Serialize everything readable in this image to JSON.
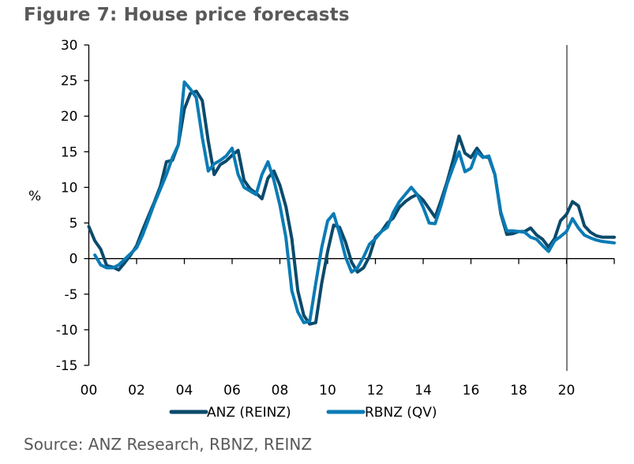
{
  "title": "Figure 7: House price forecasts",
  "source": "Source: ANZ Research, RBNZ, REINZ",
  "chart_data": {
    "type": "line",
    "title": "Figure 7: House price forecasts",
    "xlabel": "",
    "ylabel": "%",
    "xlim": [
      2000,
      2022
    ],
    "ylim": [
      -15,
      30
    ],
    "y_ticks": [
      30,
      25,
      20,
      15,
      10,
      5,
      0,
      -5,
      -10,
      -15
    ],
    "x_ticks": [
      {
        "value": 2000,
        "label": "00"
      },
      {
        "value": 2002,
        "label": "02"
      },
      {
        "value": 2004,
        "label": "04"
      },
      {
        "value": 2006,
        "label": "06"
      },
      {
        "value": 2008,
        "label": "08"
      },
      {
        "value": 2010,
        "label": "10"
      },
      {
        "value": 2012,
        "label": "12"
      },
      {
        "value": 2014,
        "label": "14"
      },
      {
        "value": 2016,
        "label": "16"
      },
      {
        "value": 2018,
        "label": "18"
      },
      {
        "value": 2020,
        "label": "20"
      },
      {
        "value": 2022,
        "label": ""
      }
    ],
    "grid": false,
    "legend": "bottom-center",
    "forecast_marker_x": 2020.0,
    "series": [
      {
        "name": "ANZ (REINZ)",
        "color": "#0b4a6b",
        "points": [
          [
            2000.0,
            4.5
          ],
          [
            2000.25,
            2.5
          ],
          [
            2000.5,
            1.3
          ],
          [
            2000.75,
            -1.0
          ],
          [
            2001.0,
            -1.2
          ],
          [
            2001.25,
            -1.6
          ],
          [
            2001.5,
            -0.6
          ],
          [
            2001.75,
            0.5
          ],
          [
            2002.0,
            1.8
          ],
          [
            2002.25,
            4.0
          ],
          [
            2002.5,
            6.0
          ],
          [
            2002.75,
            8.0
          ],
          [
            2003.0,
            10.2
          ],
          [
            2003.25,
            13.6
          ],
          [
            2003.5,
            13.8
          ],
          [
            2003.75,
            16.0
          ],
          [
            2004.0,
            21.0
          ],
          [
            2004.25,
            23.2
          ],
          [
            2004.5,
            23.5
          ],
          [
            2004.75,
            22.2
          ],
          [
            2005.0,
            16.5
          ],
          [
            2005.25,
            11.8
          ],
          [
            2005.5,
            13.2
          ],
          [
            2005.75,
            13.7
          ],
          [
            2006.0,
            14.5
          ],
          [
            2006.25,
            15.2
          ],
          [
            2006.5,
            11.0
          ],
          [
            2006.75,
            9.8
          ],
          [
            2007.0,
            9.2
          ],
          [
            2007.25,
            8.4
          ],
          [
            2007.5,
            11.3
          ],
          [
            2007.75,
            12.3
          ],
          [
            2008.0,
            10.3
          ],
          [
            2008.25,
            7.3
          ],
          [
            2008.5,
            2.8
          ],
          [
            2008.75,
            -4.5
          ],
          [
            2009.0,
            -8.0
          ],
          [
            2009.25,
            -9.2
          ],
          [
            2009.5,
            -9.0
          ],
          [
            2009.75,
            -3.5
          ],
          [
            2010.0,
            1.0
          ],
          [
            2010.25,
            4.7
          ],
          [
            2010.5,
            4.4
          ],
          [
            2010.75,
            2.3
          ],
          [
            2011.0,
            -0.5
          ],
          [
            2011.25,
            -1.9
          ],
          [
            2011.5,
            -1.3
          ],
          [
            2011.75,
            0.3
          ],
          [
            2012.0,
            3.0
          ],
          [
            2012.25,
            3.8
          ],
          [
            2012.5,
            5.0
          ],
          [
            2012.75,
            5.7
          ],
          [
            2013.0,
            7.2
          ],
          [
            2013.25,
            8.0
          ],
          [
            2013.5,
            8.6
          ],
          [
            2013.75,
            9.0
          ],
          [
            2014.0,
            8.2
          ],
          [
            2014.25,
            7.0
          ],
          [
            2014.5,
            5.8
          ],
          [
            2014.75,
            8.2
          ],
          [
            2015.0,
            10.8
          ],
          [
            2015.25,
            13.8
          ],
          [
            2015.5,
            17.2
          ],
          [
            2015.75,
            14.8
          ],
          [
            2016.0,
            14.2
          ],
          [
            2016.25,
            15.5
          ],
          [
            2016.5,
            14.3
          ],
          [
            2016.75,
            14.2
          ],
          [
            2017.0,
            11.8
          ],
          [
            2017.25,
            6.3
          ],
          [
            2017.5,
            3.4
          ],
          [
            2017.75,
            3.5
          ],
          [
            2018.0,
            3.8
          ],
          [
            2018.25,
            3.8
          ],
          [
            2018.5,
            4.3
          ],
          [
            2018.75,
            3.3
          ],
          [
            2019.0,
            2.7
          ],
          [
            2019.25,
            1.6
          ],
          [
            2019.5,
            2.8
          ],
          [
            2019.75,
            5.3
          ],
          [
            2020.0,
            6.2
          ],
          [
            2020.25,
            8.0
          ],
          [
            2020.5,
            7.4
          ],
          [
            2020.75,
            4.6
          ],
          [
            2021.0,
            3.7
          ],
          [
            2021.25,
            3.2
          ],
          [
            2021.5,
            3.0
          ],
          [
            2021.75,
            3.0
          ],
          [
            2022.0,
            3.0
          ]
        ]
      },
      {
        "name": "RBNZ (QV)",
        "color": "#0a7bb5",
        "points": [
          [
            2000.25,
            0.5
          ],
          [
            2000.5,
            -0.9
          ],
          [
            2000.75,
            -1.3
          ],
          [
            2001.0,
            -1.3
          ],
          [
            2001.25,
            -0.9
          ],
          [
            2001.5,
            -0.1
          ],
          [
            2001.75,
            0.7
          ],
          [
            2002.0,
            1.5
          ],
          [
            2002.25,
            3.3
          ],
          [
            2002.5,
            5.5
          ],
          [
            2002.75,
            7.8
          ],
          [
            2003.0,
            9.8
          ],
          [
            2003.25,
            11.8
          ],
          [
            2003.5,
            14.2
          ],
          [
            2003.75,
            16.0
          ],
          [
            2004.0,
            24.8
          ],
          [
            2004.25,
            23.8
          ],
          [
            2004.5,
            22.6
          ],
          [
            2004.75,
            17.0
          ],
          [
            2005.0,
            12.3
          ],
          [
            2005.25,
            13.3
          ],
          [
            2005.5,
            13.8
          ],
          [
            2005.75,
            14.4
          ],
          [
            2006.0,
            15.5
          ],
          [
            2006.25,
            11.8
          ],
          [
            2006.5,
            10.0
          ],
          [
            2006.75,
            9.5
          ],
          [
            2007.0,
            9.0
          ],
          [
            2007.25,
            11.8
          ],
          [
            2007.5,
            13.6
          ],
          [
            2007.75,
            11.0
          ],
          [
            2008.0,
            7.5
          ],
          [
            2008.25,
            3.0
          ],
          [
            2008.5,
            -4.5
          ],
          [
            2008.75,
            -7.5
          ],
          [
            2009.0,
            -9.0
          ],
          [
            2009.25,
            -8.8
          ],
          [
            2009.5,
            -3.5
          ],
          [
            2009.75,
            1.5
          ],
          [
            2010.0,
            5.3
          ],
          [
            2010.25,
            6.3
          ],
          [
            2010.5,
            3.5
          ],
          [
            2010.75,
            0.2
          ],
          [
            2011.0,
            -1.9
          ],
          [
            2011.25,
            -1.3
          ],
          [
            2011.5,
            0.2
          ],
          [
            2011.75,
            2.0
          ],
          [
            2012.0,
            2.8
          ],
          [
            2012.25,
            3.8
          ],
          [
            2012.5,
            4.4
          ],
          [
            2012.75,
            6.5
          ],
          [
            2013.0,
            8.0
          ],
          [
            2013.25,
            9.0
          ],
          [
            2013.5,
            10.0
          ],
          [
            2013.75,
            9.0
          ],
          [
            2014.0,
            7.2
          ],
          [
            2014.25,
            5.0
          ],
          [
            2014.5,
            4.9
          ],
          [
            2014.75,
            7.5
          ],
          [
            2015.0,
            10.5
          ],
          [
            2015.25,
            12.8
          ],
          [
            2015.5,
            15.0
          ],
          [
            2015.75,
            12.2
          ],
          [
            2016.0,
            12.7
          ],
          [
            2016.25,
            15.0
          ],
          [
            2016.5,
            14.2
          ],
          [
            2016.75,
            14.4
          ],
          [
            2017.0,
            11.8
          ],
          [
            2017.25,
            6.5
          ],
          [
            2017.5,
            3.9
          ],
          [
            2017.75,
            3.9
          ],
          [
            2018.0,
            3.8
          ],
          [
            2018.25,
            3.7
          ],
          [
            2018.5,
            3.0
          ],
          [
            2018.75,
            2.7
          ],
          [
            2019.0,
            1.8
          ],
          [
            2019.25,
            1.0
          ],
          [
            2019.5,
            2.5
          ],
          [
            2019.75,
            3.1
          ],
          [
            2020.0,
            3.8
          ],
          [
            2020.25,
            5.6
          ],
          [
            2020.5,
            4.3
          ],
          [
            2020.75,
            3.3
          ],
          [
            2021.0,
            2.9
          ],
          [
            2021.25,
            2.6
          ],
          [
            2021.5,
            2.4
          ],
          [
            2021.75,
            2.3
          ],
          [
            2022.0,
            2.2
          ]
        ]
      }
    ]
  }
}
